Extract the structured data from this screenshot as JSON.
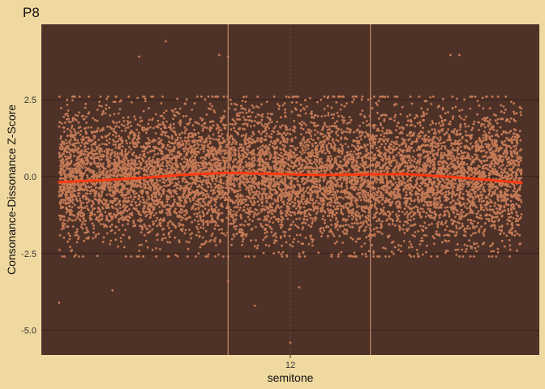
{
  "chart_data": {
    "type": "scatter",
    "title": "P8",
    "xlabel": "semitone",
    "ylabel": "Consonance-Dissonance Z-Score",
    "x_ticks": [
      12
    ],
    "x_tick_labels": [
      "12"
    ],
    "xlim": [
      11.72,
      12.28
    ],
    "ylim": [
      -5.8,
      4.95
    ],
    "y_ticks": [
      2.5,
      0.0,
      -2.5,
      -5.0
    ],
    "y_tick_labels": [
      "2.5",
      "0.0",
      "-2.5",
      "-5.0"
    ],
    "grid": true,
    "x_reference_lines": [
      11.93,
      12.09
    ],
    "x_center_line": 12,
    "points": {
      "count": 9000,
      "x_range": [
        11.74,
        12.26
      ],
      "y_mean": 0.0,
      "y_sd": 1.05,
      "outliers": [
        {
          "x": 11.86,
          "y": 4.4
        },
        {
          "x": 11.83,
          "y": 3.9
        },
        {
          "x": 11.92,
          "y": 3.95
        },
        {
          "x": 11.93,
          "y": 3.9
        },
        {
          "x": 12.18,
          "y": 3.95
        },
        {
          "x": 12.19,
          "y": 3.95
        },
        {
          "x": 11.74,
          "y": -4.1
        },
        {
          "x": 11.8,
          "y": -3.7
        },
        {
          "x": 11.96,
          "y": -4.2
        },
        {
          "x": 12.0,
          "y": -5.4
        },
        {
          "x": 12.01,
          "y": -3.6
        },
        {
          "x": 11.93,
          "y": -3.4
        }
      ]
    },
    "trend_line": {
      "x": [
        11.74,
        11.78,
        11.83,
        11.88,
        11.93,
        11.98,
        12.03,
        12.08,
        12.13,
        12.18,
        12.22,
        12.26
      ],
      "y": [
        -0.18,
        -0.13,
        -0.05,
        0.06,
        0.12,
        0.09,
        0.05,
        0.07,
        0.08,
        -0.01,
        -0.1,
        -0.2
      ]
    },
    "colors": {
      "page_background": "#f0d9a0",
      "panel_background": "#4e3228",
      "gridline": "#2e1a14",
      "points": "#c47a56",
      "reference_line": "#c48a6a",
      "center_line": "#6a4a3e",
      "trend_line": "#ff3a10",
      "text": "#111111",
      "tick_text": "#333333"
    }
  }
}
